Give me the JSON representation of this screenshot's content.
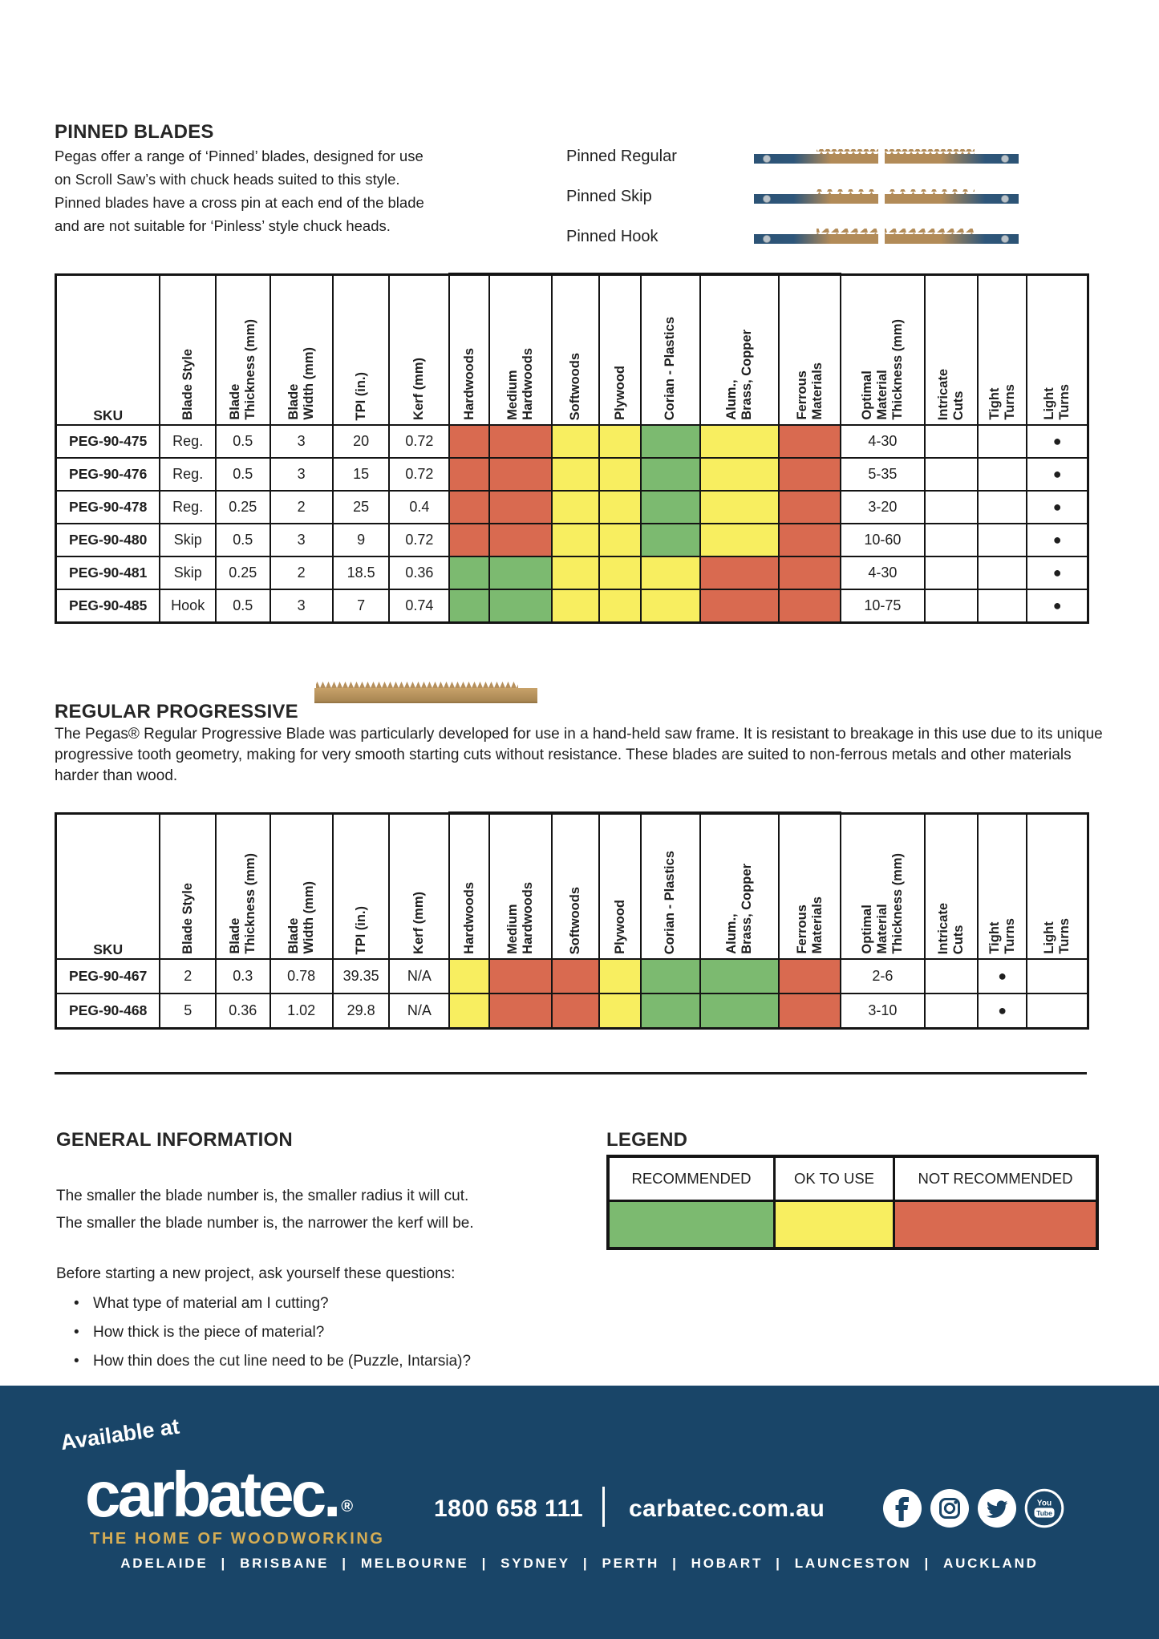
{
  "pinned": {
    "title": "PINNED BLADES",
    "intro": "Pegas offer a range of ‘Pinned’ blades, designed for use\non Scroll Saw’s with chuck heads suited to this style.\nPinned blades have a cross pin at each end of the blade\nand are not suitable for ‘Pinless’ style chuck heads.",
    "blades": [
      {
        "label": "Pinned Regular",
        "tooth": "regular"
      },
      {
        "label": "Pinned Skip",
        "tooth": "skip"
      },
      {
        "label": "Pinned Hook",
        "tooth": "hook"
      }
    ]
  },
  "columns": [
    {
      "label": "SKU"
    },
    {
      "label": "Blade Style"
    },
    {
      "label": "Blade\nThickness (mm)"
    },
    {
      "label": "Blade\nWidth (mm)"
    },
    {
      "label": "TPI (in.)"
    },
    {
      "label": "Kerf (mm)"
    },
    {
      "label": "Hardwoods"
    },
    {
      "label": "Medium\nHardwoods"
    },
    {
      "label": "Softwoods"
    },
    {
      "label": "Plywood"
    },
    {
      "label": "Corian - Plastics"
    },
    {
      "label": "Alum.,\nBrass, Copper"
    },
    {
      "label": "Ferrous\nMaterials"
    },
    {
      "label": "Optimal\nMaterial\nThickness (mm)"
    },
    {
      "label": "Intricate\nCuts"
    },
    {
      "label": "Tight\nTurns"
    },
    {
      "label": "Light\nTurns"
    }
  ],
  "rating_legend_key": {
    "G": "RECOMMENDED",
    "Y": "OK TO USE",
    "R": "NOT RECOMMENDED"
  },
  "pinned_table": {
    "rows": [
      {
        "sku": "PEG-90-475",
        "style": "Reg.",
        "thickness": "0.5",
        "width": "3",
        "tpi": "20",
        "kerf": "0.72",
        "ratings": [
          "R",
          "R",
          "Y",
          "Y",
          "G",
          "Y",
          "R"
        ],
        "optimal": "4-30",
        "intricate": "",
        "tight": "",
        "light": "●"
      },
      {
        "sku": "PEG-90-476",
        "style": "Reg.",
        "thickness": "0.5",
        "width": "3",
        "tpi": "15",
        "kerf": "0.72",
        "ratings": [
          "R",
          "R",
          "Y",
          "Y",
          "G",
          "Y",
          "R"
        ],
        "optimal": "5-35",
        "intricate": "",
        "tight": "",
        "light": "●"
      },
      {
        "sku": "PEG-90-478",
        "style": "Reg.",
        "thickness": "0.25",
        "width": "2",
        "tpi": "25",
        "kerf": "0.4",
        "ratings": [
          "R",
          "R",
          "Y",
          "Y",
          "G",
          "Y",
          "R"
        ],
        "optimal": "3-20",
        "intricate": "",
        "tight": "",
        "light": "●"
      },
      {
        "sku": "PEG-90-480",
        "style": "Skip",
        "thickness": "0.5",
        "width": "3",
        "tpi": "9",
        "kerf": "0.72",
        "ratings": [
          "R",
          "R",
          "Y",
          "Y",
          "G",
          "Y",
          "R"
        ],
        "optimal": "10-60",
        "intricate": "",
        "tight": "",
        "light": "●"
      },
      {
        "sku": "PEG-90-481",
        "style": "Skip",
        "thickness": "0.25",
        "width": "2",
        "tpi": "18.5",
        "kerf": "0.36",
        "ratings": [
          "G",
          "G",
          "Y",
          "Y",
          "Y",
          "R",
          "R"
        ],
        "optimal": "4-30",
        "intricate": "",
        "tight": "",
        "light": "●"
      },
      {
        "sku": "PEG-90-485",
        "style": "Hook",
        "thickness": "0.5",
        "width": "3",
        "tpi": "7",
        "kerf": "0.74",
        "ratings": [
          "G",
          "G",
          "Y",
          "Y",
          "Y",
          "R",
          "R"
        ],
        "optimal": "10-75",
        "intricate": "",
        "tight": "",
        "light": "●"
      }
    ]
  },
  "progressive": {
    "title": "REGULAR PROGRESSIVE",
    "blurb": "The Pegas® Regular Progressive Blade was particularly developed for use in a hand-held saw frame. It is resistant to breakage in this use due to its unique progressive tooth geometry, making for very smooth starting cuts without resistance. These blades are suited to non-ferrous metals and other materials harder than wood."
  },
  "progressive_table": {
    "rows": [
      {
        "sku": "PEG-90-467",
        "style": "2",
        "thickness": "0.3",
        "width": "0.78",
        "tpi": "39.35",
        "kerf": "N/A",
        "ratings": [
          "Y",
          "R",
          "R",
          "Y",
          "G",
          "G",
          "R"
        ],
        "optimal": "2-6",
        "intricate": "",
        "tight": "●",
        "light": ""
      },
      {
        "sku": "PEG-90-468",
        "style": "5",
        "thickness": "0.36",
        "width": "1.02",
        "tpi": "29.8",
        "kerf": "N/A",
        "ratings": [
          "Y",
          "R",
          "R",
          "Y",
          "G",
          "G",
          "R"
        ],
        "optimal": "3-10",
        "intricate": "",
        "tight": "●",
        "light": ""
      }
    ]
  },
  "general": {
    "title": "GENERAL INFORMATION",
    "lines": "The smaller the blade number is, the smaller radius it will cut.\nThe smaller the blade number is, the narrower the kerf will be.",
    "questions_intro": "Before starting a new project, ask yourself these questions:",
    "bullet": "•",
    "bullets": [
      "What type of material am I cutting?",
      "How thick is the piece of material?",
      "How thin does the cut line need to be (Puzzle, Intarsia)?"
    ]
  },
  "legend": {
    "title": "LEGEND",
    "items": [
      {
        "label": "RECOMMENDED",
        "color": "#7cba70"
      },
      {
        "label": "OK TO USE",
        "color": "#f8ee60"
      },
      {
        "label": "NOT RECOMMENDED",
        "color": "#d96a50"
      }
    ]
  },
  "footer": {
    "available_at": "Available at",
    "brand": "carbatec.",
    "reg": "®",
    "tagline": "THE HOME OF WOODWORKING",
    "phone": "1800 658 111",
    "website": "carbatec.com.au",
    "icons": [
      "facebook",
      "instagram",
      "twitter",
      "youtube"
    ],
    "youtube_text_top": "You",
    "youtube_text_bottom": "Tube",
    "city_separator": "|",
    "cities": [
      "ADELAIDE",
      "BRISBANE",
      "MELBOURNE",
      "SYDNEY",
      "PERTH",
      "HOBART",
      "LAUNCESTON",
      "AUCKLAND"
    ]
  },
  "colors": {
    "recommended_green": "#7cba70",
    "ok_yellow": "#f8ee60",
    "not_recommended_red": "#d96a50",
    "footer_navy": "#194568",
    "brand_gold": "#d5ad55",
    "blade_steel_blue": "#2c5375",
    "blade_brass": "#b28b58"
  }
}
